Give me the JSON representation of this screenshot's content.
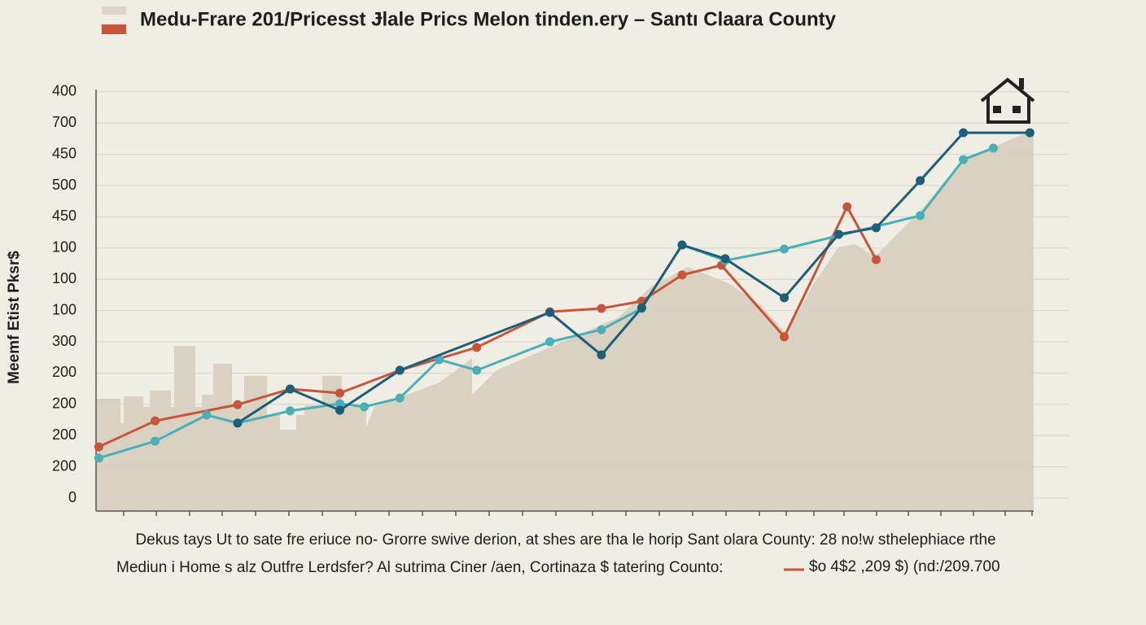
{
  "chart_data": {
    "type": "line",
    "title": "Medu-Frare 201/Pricesst Ɉlale Prics Melon tinden.ery – Santı Claara County",
    "y_label": "Meemf Etist Pksr$",
    "caption": [
      "Dekus tays Ut to sate fre eriuce no- Grorre swive derion, at shes are tha le horip Sant olara County: 28 no!w sthelephiace rthe",
      "Mediun i Home s alz Outfre Lerdsfer? Al sutrima Ciner /aen, Cortinaza $ tatering Counto:"
    ],
    "legend_note": "$o 4$2 ,209 $) (nd:/209.700",
    "xlim": [
      0,
      100
    ],
    "ylim": [
      -0.4,
      13.1
    ],
    "yticks": [
      0,
      {
        "value": 1,
        "label": "200"
      },
      {
        "value": 2,
        "label": "200"
      },
      {
        "value": 3,
        "label": "200"
      },
      {
        "value": 4,
        "label": "200"
      },
      {
        "value": 5,
        "label": "300"
      },
      {
        "value": 6,
        "label": "100"
      },
      {
        "value": 7,
        "label": "100"
      },
      {
        "value": 8,
        "label": "100"
      },
      {
        "value": 9,
        "label": "450"
      },
      {
        "value": 10,
        "label": "500"
      },
      {
        "value": 11,
        "label": "450"
      },
      {
        "value": 12,
        "label": "700"
      },
      {
        "value": 13,
        "label": "400"
      }
    ],
    "grid": true,
    "series": [
      {
        "color": "#c8553a",
        "x": [
          0.3,
          6.3,
          15.1,
          20.7,
          26.0,
          32.4,
          40.6,
          48.4,
          53.9,
          58.2,
          62.5,
          66.7,
          73.4,
          80.1,
          83.2
        ],
        "values": [
          1.64,
          2.47,
          2.99,
          3.49,
          3.36,
          4.09,
          4.82,
          5.96,
          6.07,
          6.3,
          7.14,
          7.45,
          5.16,
          9.32,
          7.63
        ]
      },
      {
        "color": "#4ab0b8",
        "x": [
          0.3,
          6.3,
          11.8,
          15.1,
          20.7,
          26.0,
          28.6,
          32.4,
          36.6,
          40.6,
          48.4,
          53.9,
          58.2,
          62.5,
          67.1,
          73.4,
          87.9,
          92.5,
          95.7
        ],
        "values": [
          1.28,
          1.82,
          2.66,
          2.4,
          2.79,
          3.02,
          2.92,
          3.2,
          4.43,
          4.09,
          5.0,
          5.39,
          6.07,
          8.1,
          7.6,
          7.97,
          9.04,
          10.83,
          11.2
        ]
      },
      {
        "color": "#1d5f78",
        "x": [
          15.1,
          20.7,
          26.0,
          32.4,
          48.4,
          53.9,
          58.2,
          62.5,
          67.1,
          73.4,
          79.2,
          83.2,
          87.9,
          92.5,
          99.6
        ],
        "values": [
          2.4,
          3.49,
          2.81,
          4.09,
          5.94,
          4.58,
          6.09,
          8.1,
          7.66,
          6.41,
          8.44,
          8.65,
          10.16,
          11.69,
          11.69
        ]
      }
    ]
  }
}
